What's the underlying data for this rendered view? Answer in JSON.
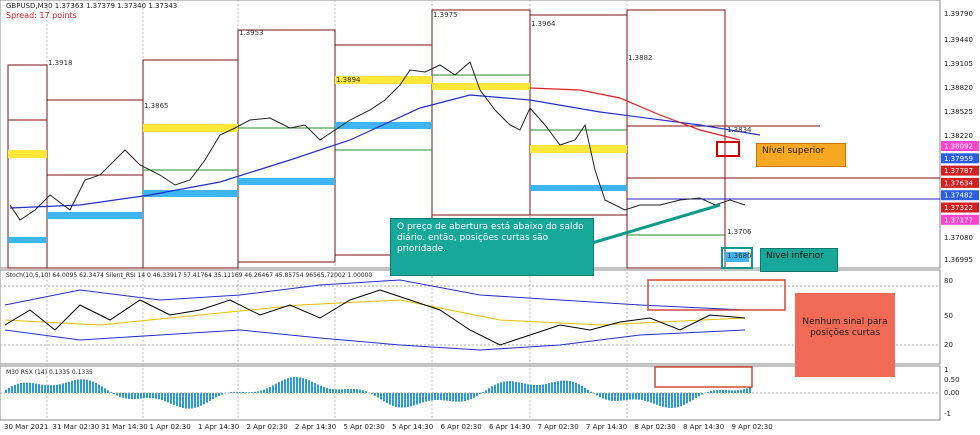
{
  "header": {
    "symbol": "GBPUSD,M30  1.37363 1.37379 1.37340 1.37343",
    "spread": "Spread: 17 points"
  },
  "indicators": {
    "stoch": "Stoch(10,5,10) 64.0095 62.3474  Silent_RSI 14 0 46.33917 57.41764 35.11169 46.26467 45.85754 96565.72002 1.00000",
    "rsx": "M30  RSX (14) 0.1335 0.1335"
  },
  "price_axis": [
    "1.39790",
    "1.39440",
    "1.39105",
    "1.38820",
    "1.38525",
    "1.38220",
    "1.37080",
    "1.36995"
  ],
  "price_tags": [
    {
      "label": "1.38092",
      "color": "#ff44cc"
    },
    {
      "label": "1.37959",
      "color": "#2a60e0"
    },
    {
      "label": "1.37787",
      "color": "#d02020"
    },
    {
      "label": "1.37634",
      "color": "#d02020"
    },
    {
      "label": "1.37482",
      "color": "#2a60e0"
    },
    {
      "label": "1.37322",
      "color": "#d02020"
    },
    {
      "label": "1.37177",
      "color": "#ff44cc"
    }
  ],
  "stoch_axis": [
    "80",
    "50",
    "20"
  ],
  "rsx_axis": [
    "1",
    "0.50",
    "0.00",
    "-1"
  ],
  "levels": [
    "1.3918",
    "1.3865",
    "1.3953",
    "1.3894",
    "1.3975",
    "1.3964",
    "1.3882",
    "1.3834",
    "1.3706",
    "1.3680"
  ],
  "time_axis": [
    "30 Mar 2021",
    "31 Mar 02:30",
    "31 Mar 14:30",
    "1 Apr 02:30",
    "1 Apr 14:30",
    "2 Apr 02:30",
    "2 Apr 14:30",
    "5 Apr 02:30",
    "5 Apr 14:30",
    "6 Apr 02:30",
    "6 Apr 14:30",
    "7 Apr 02:30",
    "7 Apr 14:30",
    "8 Apr 02:30",
    "8 Apr 14:30",
    "9 Apr 02:30"
  ],
  "annotations": {
    "opening": "O preço de abertura está abaixo do saldo diário. então, posições curtas são prioridade.",
    "upper": "Nível superior",
    "lower": "Nível inferior",
    "no_signal": "Nenhum sinal para posições curtas"
  }
}
